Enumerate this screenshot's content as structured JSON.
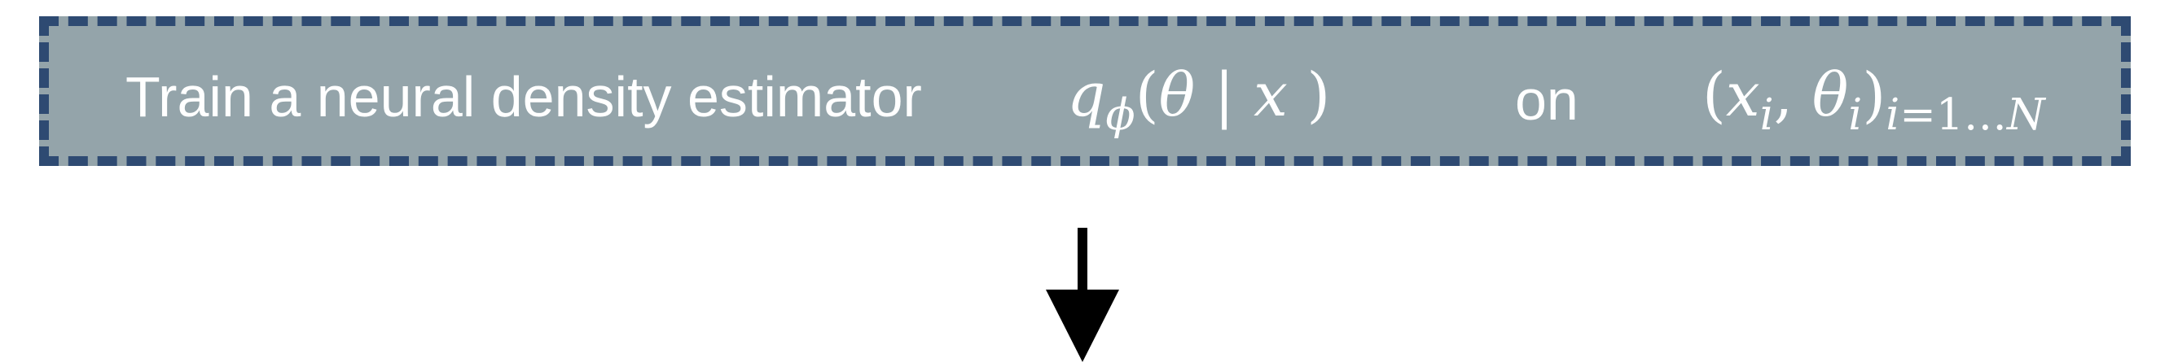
{
  "step": {
    "text": "Train a neural density estimator",
    "density": {
      "fn": "q",
      "fn_sub": "ϕ",
      "open": "(",
      "var": "θ",
      "sep": " | ",
      "cond": "x",
      "close": " )"
    },
    "connector": "on",
    "dataset": {
      "open": "(",
      "x": "x",
      "x_sub": "i",
      "comma": ", ",
      "theta": "θ",
      "theta_sub": "i",
      "close": ")",
      "index": "i",
      "range": "=1…",
      "count": "N"
    }
  },
  "colors": {
    "box_fill": "#94a4aa",
    "box_border": "#2e4a72",
    "text": "#ffffff",
    "arrow": "#000000"
  }
}
